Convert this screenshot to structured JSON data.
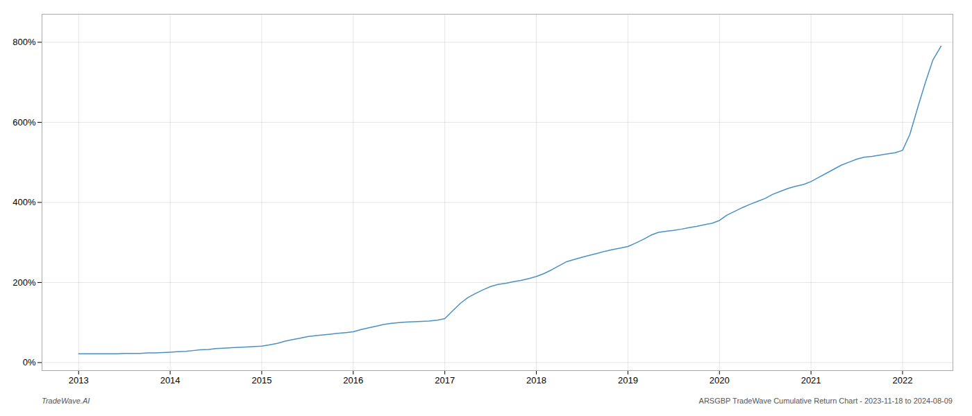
{
  "chart_data": {
    "type": "line",
    "annotations": [
      "TradeWave.AI",
      "ARSGBP TradeWave Cumulative Return Chart - 2023-11-18 to 2024-08-09"
    ],
    "x": [
      2013.0,
      2013.08,
      2013.17,
      2013.25,
      2013.33,
      2013.42,
      2013.5,
      2013.58,
      2013.67,
      2013.75,
      2013.83,
      2013.92,
      2014.0,
      2014.08,
      2014.17,
      2014.25,
      2014.33,
      2014.42,
      2014.5,
      2014.58,
      2014.67,
      2014.75,
      2014.83,
      2014.92,
      2015.0,
      2015.08,
      2015.17,
      2015.25,
      2015.33,
      2015.42,
      2015.5,
      2015.58,
      2015.67,
      2015.75,
      2015.83,
      2015.92,
      2016.0,
      2016.08,
      2016.17,
      2016.25,
      2016.33,
      2016.42,
      2016.5,
      2016.58,
      2016.67,
      2016.75,
      2016.83,
      2016.92,
      2017.0,
      2017.08,
      2017.17,
      2017.25,
      2017.33,
      2017.42,
      2017.5,
      2017.58,
      2017.67,
      2017.75,
      2017.83,
      2017.92,
      2018.0,
      2018.08,
      2018.17,
      2018.25,
      2018.33,
      2018.42,
      2018.5,
      2018.58,
      2018.67,
      2018.75,
      2018.83,
      2018.92,
      2019.0,
      2019.08,
      2019.17,
      2019.25,
      2019.33,
      2019.42,
      2019.5,
      2019.58,
      2019.67,
      2019.75,
      2019.83,
      2019.92,
      2020.0,
      2020.08,
      2020.17,
      2020.25,
      2020.33,
      2020.42,
      2020.5,
      2020.58,
      2020.67,
      2020.75,
      2020.83,
      2020.92,
      2021.0,
      2021.08,
      2021.17,
      2021.25,
      2021.33,
      2021.42,
      2021.5,
      2021.58,
      2021.67,
      2021.75,
      2021.83,
      2021.92,
      2022.0,
      2022.08,
      2022.17,
      2022.25,
      2022.33,
      2022.42
    ],
    "values": [
      22,
      22,
      22,
      22,
      22,
      22,
      23,
      23,
      23,
      24,
      24,
      25,
      26,
      27,
      28,
      30,
      32,
      33,
      35,
      36,
      37,
      38,
      39,
      40,
      41,
      44,
      48,
      53,
      57,
      61,
      65,
      67,
      69,
      71,
      73,
      75,
      77,
      82,
      87,
      91,
      95,
      98,
      100,
      101,
      102,
      103,
      104,
      106,
      110,
      128,
      148,
      162,
      172,
      182,
      190,
      195,
      198,
      202,
      205,
      210,
      215,
      222,
      232,
      242,
      252,
      258,
      263,
      268,
      273,
      278,
      282,
      286,
      290,
      298,
      308,
      318,
      325,
      328,
      330,
      333,
      337,
      340,
      344,
      348,
      355,
      368,
      378,
      387,
      395,
      403,
      410,
      420,
      428,
      435,
      440,
      445,
      452,
      462,
      473,
      483,
      493,
      501,
      508,
      513,
      515,
      518,
      521,
      524,
      530,
      570,
      640,
      700,
      755,
      790
    ],
    "color": "#4a90c4",
    "xlim": [
      2012.6,
      2022.55
    ],
    "xticks": [
      2013,
      2014,
      2015,
      2016,
      2017,
      2018,
      2019,
      2020,
      2021,
      2022
    ],
    "ylim": [
      -20,
      870
    ],
    "yticks": [
      {
        "value": 0,
        "label": "0%"
      },
      {
        "value": 200,
        "label": "200%"
      },
      {
        "value": 400,
        "label": "400%"
      },
      {
        "value": 600,
        "label": "600%"
      },
      {
        "value": 800,
        "label": "800%"
      }
    ],
    "grid": true
  }
}
